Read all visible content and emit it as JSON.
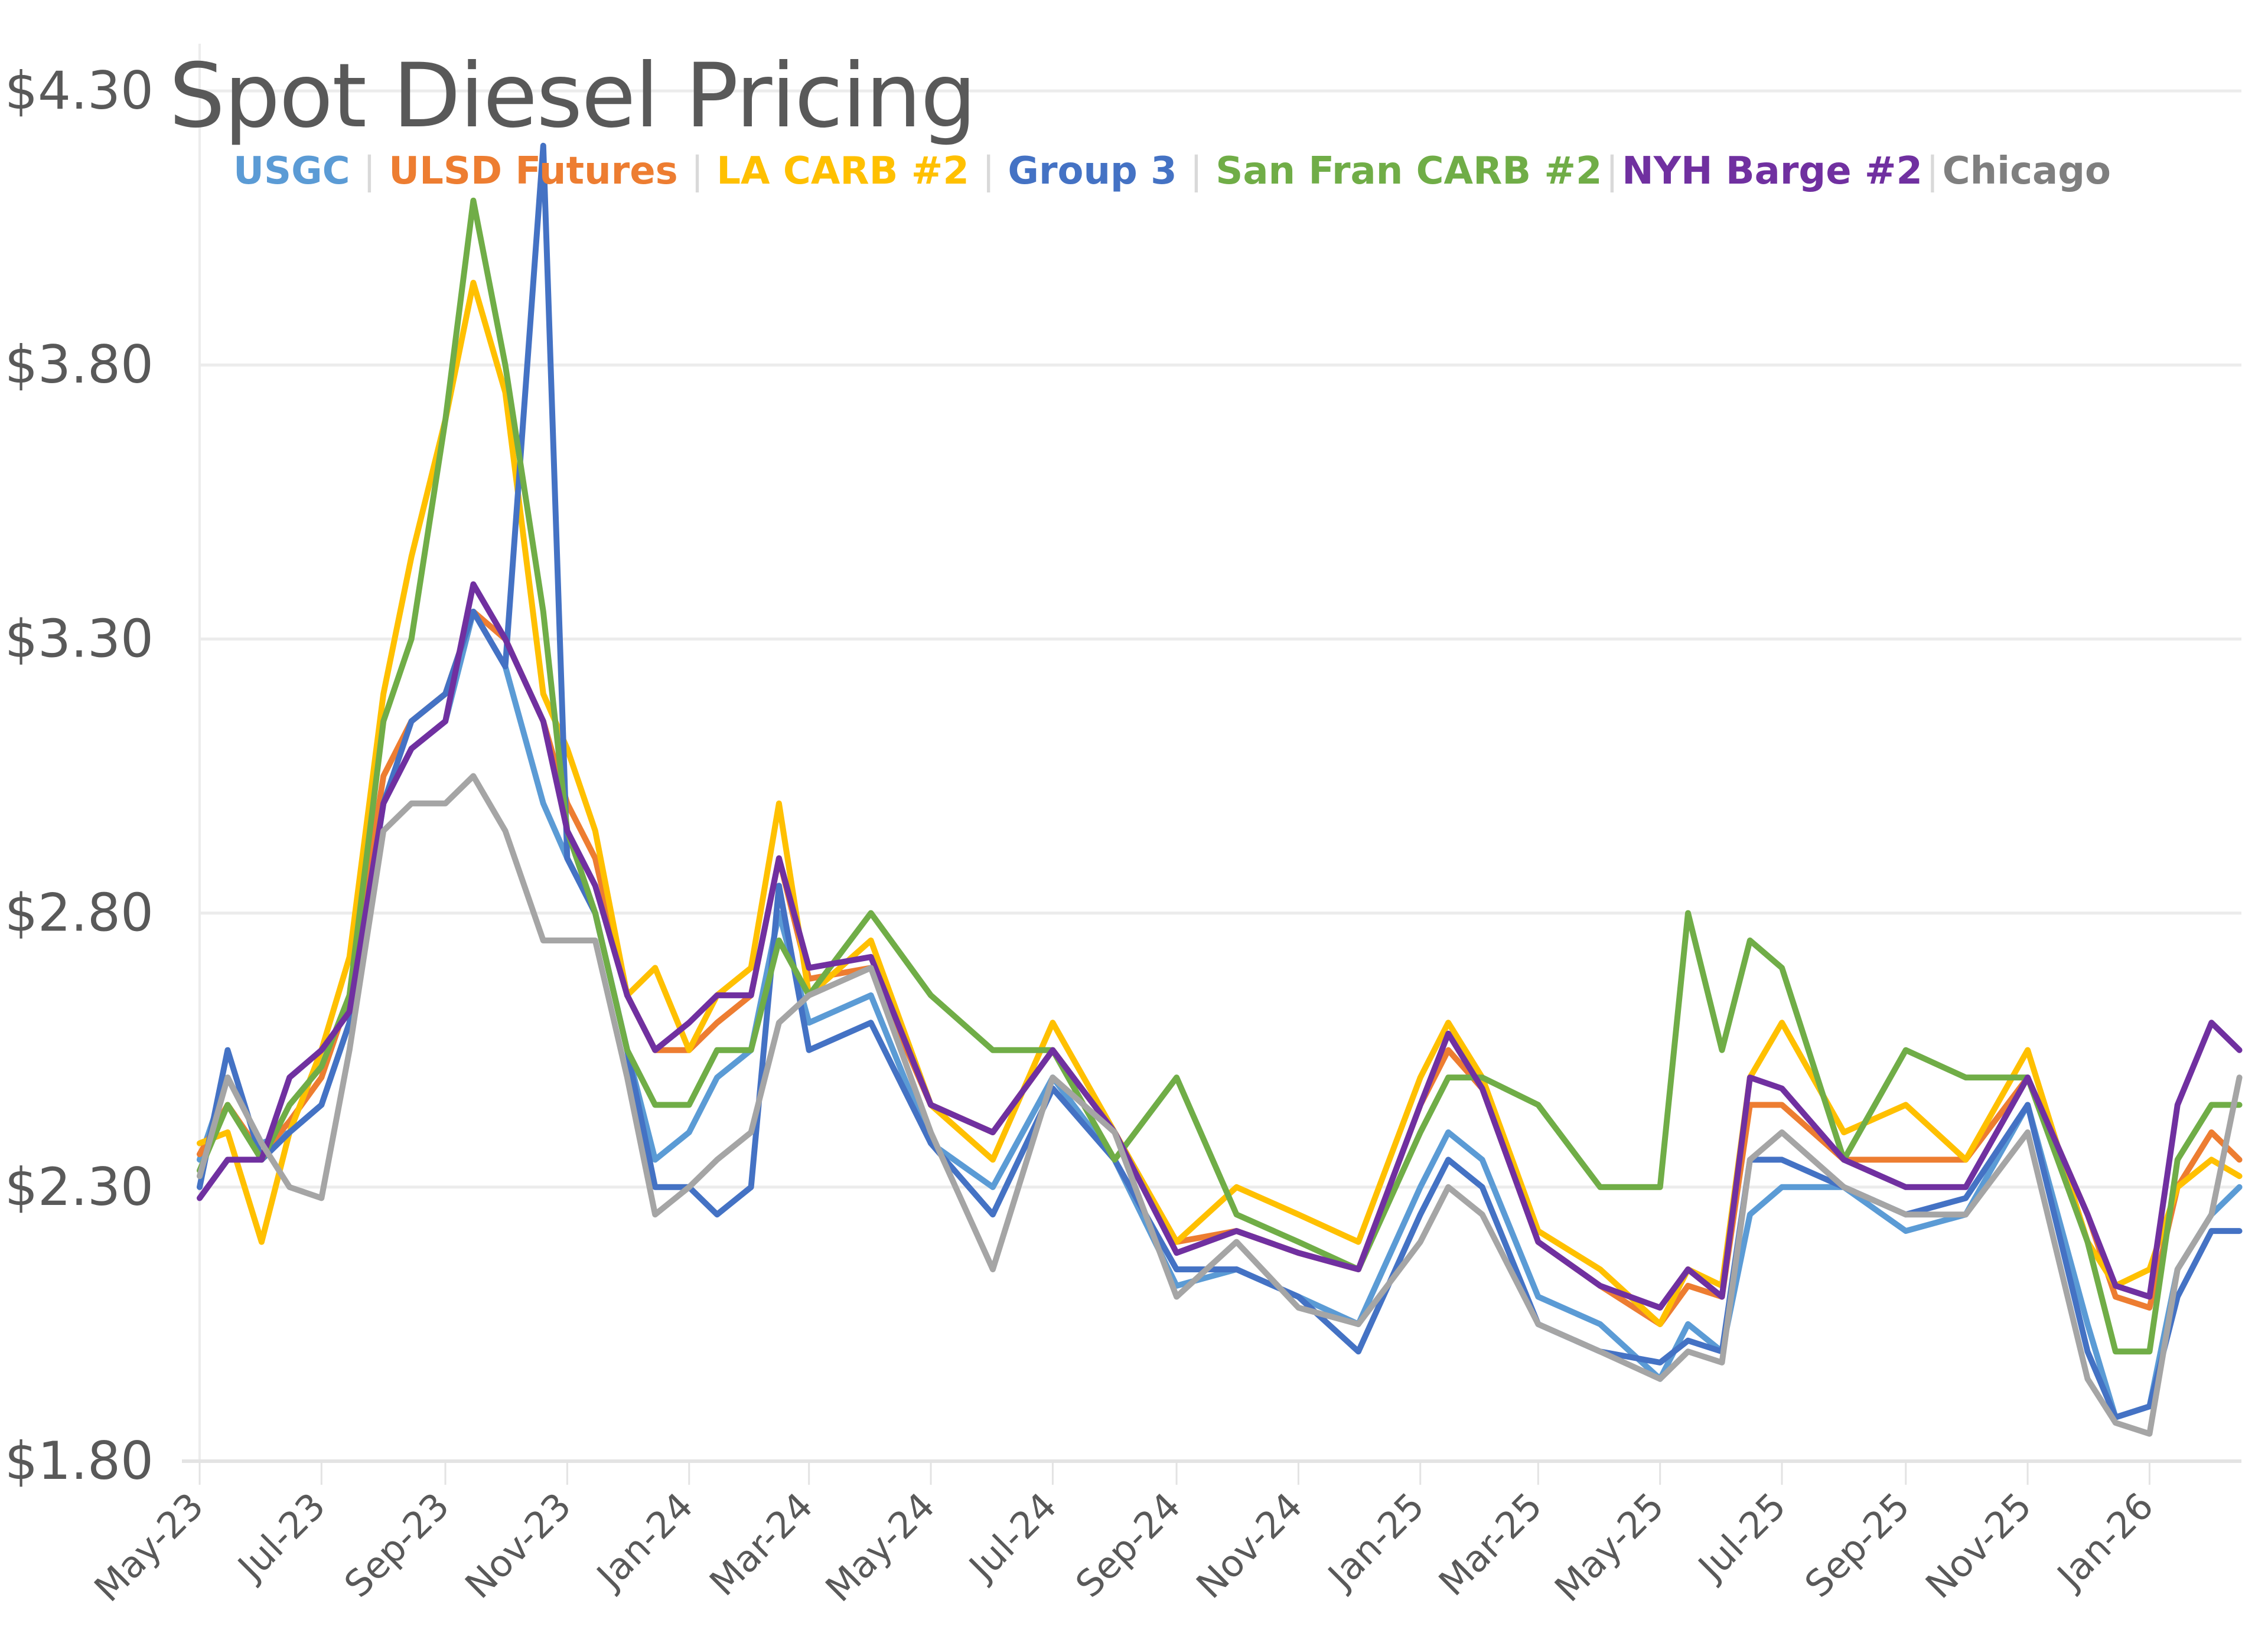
{
  "chart_data": {
    "type": "line",
    "title": "Spot Diesel Pricing",
    "xlabel": "",
    "ylabel": "",
    "ylim": [
      1.8,
      4.3
    ],
    "yticks": [
      1.8,
      2.3,
      2.8,
      3.3,
      3.8,
      4.3
    ],
    "ytick_labels": [
      "$1.80",
      "$2.30",
      "$2.80",
      "$3.30",
      "$3.80",
      "$4.30"
    ],
    "xlim": [
      "2023-05-01",
      "2026-02-16"
    ],
    "xticks": [
      "2023-05-01",
      "2023-07-01",
      "2023-09-01",
      "2023-11-01",
      "2024-01-01",
      "2024-03-01",
      "2024-05-01",
      "2024-07-01",
      "2024-09-01",
      "2024-11-01",
      "2025-01-01",
      "2025-03-01",
      "2025-05-01",
      "2025-07-01",
      "2025-09-01",
      "2025-11-01",
      "2026-01-01"
    ],
    "xtick_labels": [
      "May-23",
      "Jul-23",
      "Sep-23",
      "Nov-23",
      "Jan-24",
      "Mar-24",
      "May-24",
      "Jul-24",
      "Sep-24",
      "Nov-24",
      "Jan-25",
      "Mar-25",
      "May-25",
      "Jul-25",
      "Sep-25",
      "Nov-25",
      "Jan-26"
    ],
    "grid": "horizontal",
    "legend_position": "top-left",
    "x": [
      "2023-05-01",
      "2023-05-15",
      "2023-06-01",
      "2023-06-15",
      "2023-07-01",
      "2023-07-15",
      "2023-08-01",
      "2023-08-15",
      "2023-09-01",
      "2023-09-15",
      "2023-10-01",
      "2023-10-20",
      "2023-11-01",
      "2023-11-15",
      "2023-12-01",
      "2023-12-15",
      "2024-01-01",
      "2024-01-15",
      "2024-02-01",
      "2024-02-15",
      "2024-03-01",
      "2024-04-01",
      "2024-05-01",
      "2024-06-01",
      "2024-07-01",
      "2024-08-01",
      "2024-09-01",
      "2024-10-01",
      "2024-11-01",
      "2024-12-01",
      "2025-01-01",
      "2025-01-15",
      "2025-02-01",
      "2025-03-01",
      "2025-04-01",
      "2025-05-01",
      "2025-05-15",
      "2025-06-01",
      "2025-06-15",
      "2025-07-01",
      "2025-08-01",
      "2025-09-01",
      "2025-10-01",
      "2025-11-01",
      "2025-12-01",
      "2025-12-15",
      "2026-01-01",
      "2026-01-15",
      "2026-02-01",
      "2026-02-15"
    ],
    "series": [
      {
        "name": "USGC",
        "color": "#5B9BD5",
        "values": [
          2.35,
          2.5,
          2.38,
          2.4,
          2.45,
          2.6,
          3.0,
          3.1,
          3.15,
          3.35,
          3.25,
          3.0,
          2.9,
          2.8,
          2.55,
          2.35,
          2.4,
          2.5,
          2.55,
          2.8,
          2.6,
          2.65,
          2.38,
          2.3,
          2.5,
          2.35,
          2.12,
          2.15,
          2.1,
          2.05,
          2.3,
          2.4,
          2.35,
          2.1,
          2.05,
          1.95,
          2.05,
          2.0,
          2.25,
          2.3,
          2.3,
          2.22,
          2.25,
          2.45,
          2.05,
          1.88,
          1.9,
          2.15,
          2.25,
          2.3
        ]
      },
      {
        "name": "ULSD Futures",
        "color": "#ED7D31",
        "values": [
          2.36,
          2.45,
          2.36,
          2.42,
          2.5,
          2.65,
          3.05,
          3.15,
          3.2,
          3.35,
          3.3,
          3.15,
          3.0,
          2.9,
          2.65,
          2.55,
          2.55,
          2.6,
          2.65,
          2.9,
          2.68,
          2.7,
          2.45,
          2.4,
          2.55,
          2.4,
          2.2,
          2.22,
          2.18,
          2.15,
          2.45,
          2.55,
          2.48,
          2.2,
          2.12,
          2.05,
          2.12,
          2.1,
          2.45,
          2.45,
          2.35,
          2.35,
          2.35,
          2.5,
          2.25,
          2.1,
          2.08,
          2.3,
          2.4,
          2.35
        ]
      },
      {
        "name": "LA CARB #2",
        "color": "#FFC000",
        "values": [
          2.38,
          2.4,
          2.2,
          2.4,
          2.55,
          2.72,
          3.2,
          3.45,
          3.7,
          3.95,
          3.75,
          3.2,
          3.1,
          2.95,
          2.65,
          2.7,
          2.55,
          2.65,
          2.7,
          3.0,
          2.65,
          2.75,
          2.45,
          2.35,
          2.6,
          2.4,
          2.2,
          2.3,
          2.25,
          2.2,
          2.5,
          2.6,
          2.5,
          2.22,
          2.15,
          2.05,
          2.15,
          2.12,
          2.5,
          2.6,
          2.4,
          2.45,
          2.35,
          2.55,
          2.2,
          2.12,
          2.15,
          2.3,
          2.35,
          2.32
        ]
      },
      {
        "name": "Group 3",
        "color": "#4472C4",
        "values": [
          2.3,
          2.55,
          2.35,
          2.4,
          2.45,
          2.6,
          3.0,
          3.15,
          3.2,
          3.35,
          3.25,
          4.2,
          2.9,
          2.8,
          2.55,
          2.3,
          2.3,
          2.25,
          2.3,
          2.85,
          2.55,
          2.6,
          2.38,
          2.25,
          2.48,
          2.35,
          2.15,
          2.15,
          2.1,
          2.0,
          2.25,
          2.35,
          2.3,
          2.05,
          2.0,
          1.98,
          2.02,
          2.0,
          2.35,
          2.35,
          2.3,
          2.25,
          2.28,
          2.45,
          2.0,
          1.88,
          1.9,
          2.1,
          2.22,
          2.22
        ]
      },
      {
        "name": "San Fran CARB #2",
        "color": "#70AD47",
        "values": [
          2.33,
          2.45,
          2.35,
          2.45,
          2.52,
          2.65,
          3.15,
          3.3,
          3.7,
          4.1,
          3.8,
          3.35,
          2.95,
          2.8,
          2.55,
          2.45,
          2.45,
          2.55,
          2.55,
          2.75,
          2.65,
          2.8,
          2.65,
          2.55,
          2.55,
          2.35,
          2.5,
          2.25,
          2.2,
          2.15,
          2.4,
          2.5,
          2.5,
          2.45,
          2.3,
          2.3,
          2.8,
          2.55,
          2.75,
          2.7,
          2.35,
          2.55,
          2.5,
          2.5,
          2.2,
          2.0,
          2.0,
          2.35,
          2.45,
          2.45
        ]
      },
      {
        "name": "NYH Barge #2",
        "color": "#7030A0",
        "values": [
          2.28,
          2.35,
          2.35,
          2.5,
          2.55,
          2.62,
          3.0,
          3.1,
          3.15,
          3.4,
          3.3,
          3.15,
          2.95,
          2.85,
          2.65,
          2.55,
          2.6,
          2.65,
          2.65,
          2.9,
          2.7,
          2.72,
          2.45,
          2.4,
          2.55,
          2.4,
          2.18,
          2.22,
          2.18,
          2.15,
          2.45,
          2.58,
          2.48,
          2.2,
          2.12,
          2.08,
          2.15,
          2.1,
          2.5,
          2.48,
          2.35,
          2.3,
          2.3,
          2.5,
          2.25,
          2.12,
          2.1,
          2.45,
          2.6,
          2.55
        ]
      },
      {
        "name": "Chicago",
        "color": "#A5A5A5",
        "values": [
          2.32,
          2.5,
          2.38,
          2.3,
          2.28,
          2.55,
          2.95,
          3.0,
          3.0,
          3.05,
          2.95,
          2.75,
          2.75,
          2.75,
          2.5,
          2.25,
          2.3,
          2.35,
          2.4,
          2.6,
          2.65,
          2.7,
          2.4,
          2.15,
          2.5,
          2.4,
          2.1,
          2.2,
          2.08,
          2.05,
          2.2,
          2.3,
          2.25,
          2.05,
          2.0,
          1.95,
          2.0,
          1.98,
          2.35,
          2.4,
          2.3,
          2.25,
          2.25,
          2.4,
          1.95,
          1.87,
          1.85,
          2.15,
          2.25,
          2.5
        ]
      }
    ]
  },
  "legend": {
    "items": [
      "USGC",
      "ULSD Futures",
      "LA CARB #2",
      "Group 3",
      "San Fran CARB #2",
      "NYH Barge #2",
      "Chicago"
    ],
    "separator": "|",
    "text_colors": [
      "#5B9BD5",
      "#ED7D31",
      "#FFC000",
      "#4472C4",
      "#70AD47",
      "#7030A0",
      "#7F7F7F"
    ]
  }
}
